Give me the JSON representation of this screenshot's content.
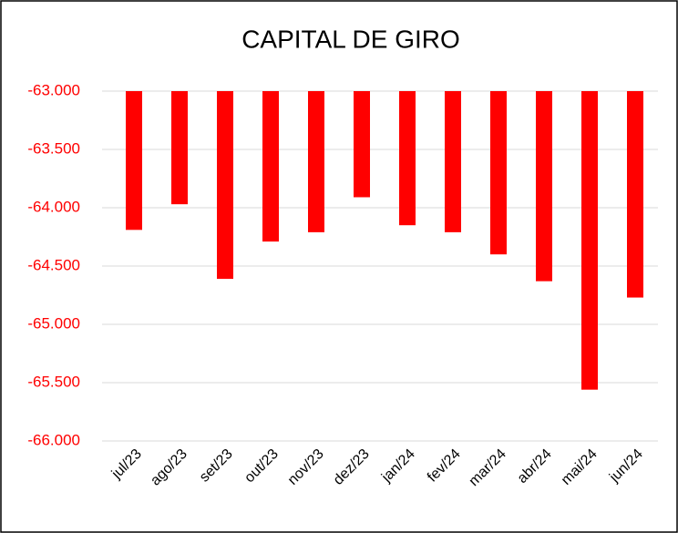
{
  "chart_data": {
    "type": "bar",
    "title": "CAPITAL DE GIRO",
    "categories": [
      "jul/23",
      "ago/23",
      "set/23",
      "out/23",
      "nov/23",
      "dez/23",
      "jan/24",
      "fev/24",
      "mar/24",
      "abr/24",
      "mai/24",
      "jun/24"
    ],
    "values": [
      -64190,
      -63970,
      -64610,
      -64290,
      -64210,
      -63910,
      -64150,
      -64210,
      -64400,
      -64630,
      -65560,
      -64770
    ],
    "color": "#ff0000",
    "ylim": [
      -66000,
      -63000
    ],
    "yticks": [
      {
        "value": -66000,
        "label": "-66.000"
      },
      {
        "value": -65500,
        "label": "-65.500"
      },
      {
        "value": -65000,
        "label": "-65.000"
      },
      {
        "value": -64500,
        "label": "-64.500"
      },
      {
        "value": -64000,
        "label": "-64.000"
      },
      {
        "value": -63500,
        "label": "-63.500"
      },
      {
        "value": -63000,
        "label": "-63.000"
      }
    ],
    "grid": true
  }
}
